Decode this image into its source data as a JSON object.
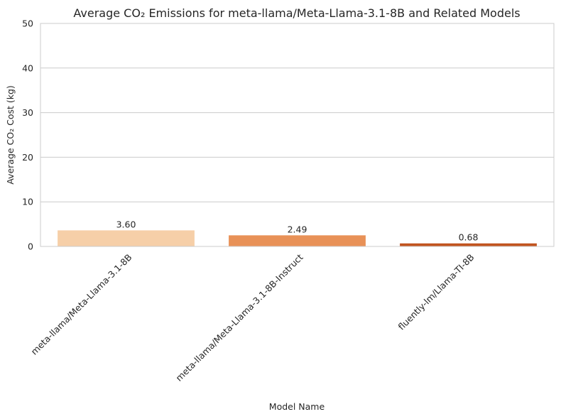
{
  "chart_data": {
    "type": "bar",
    "title": "Average CO₂ Emissions for meta-llama/Meta-Llama-3.1-8B and Related Models",
    "xlabel": "Model Name",
    "ylabel": "Average CO₂ Cost (kg)",
    "categories": [
      "meta-llama/Meta-Llama-3.1-8B",
      "meta-llama/Meta-Llama-3.1-8B-Instruct",
      "fluently-lm/Llama-TI-8B"
    ],
    "values": [
      3.6,
      2.49,
      0.68
    ],
    "value_labels": [
      "3.60",
      "2.49",
      "0.68"
    ],
    "colors": [
      "#f6cfa8",
      "#e89157",
      "#c1541f"
    ],
    "ylim": [
      0,
      50
    ],
    "yticks": [
      0,
      10,
      20,
      30,
      40,
      50
    ],
    "grid": true
  }
}
